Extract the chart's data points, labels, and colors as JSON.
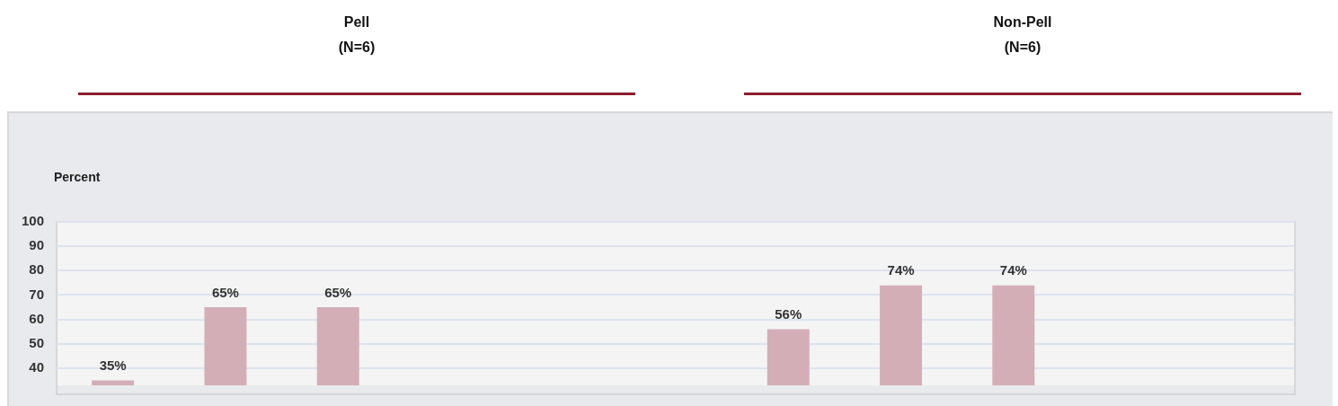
{
  "chart_data": {
    "type": "bar",
    "ylabel": "Percent",
    "annotations": [
      "Pell\n(N=6)",
      "Non-Pell\n(N=6)"
    ],
    "categories": [
      null,
      null,
      null,
      null,
      null,
      null,
      null,
      null,
      null,
      null,
      null
    ],
    "values": [
      35,
      65,
      65,
      null,
      null,
      null,
      56,
      74,
      74,
      null,
      null
    ],
    "color": "#d4aeb7",
    "value_labels": [
      "35%",
      "65%",
      "65%",
      null,
      null,
      null,
      "56%",
      "74%",
      "74%",
      null,
      null
    ],
    "ylim": [
      33,
      100
    ],
    "yticks": [
      40,
      50,
      60,
      70,
      80,
      90,
      100
    ],
    "grid": "y",
    "tick_labels": "y",
    "legend": false
  }
}
